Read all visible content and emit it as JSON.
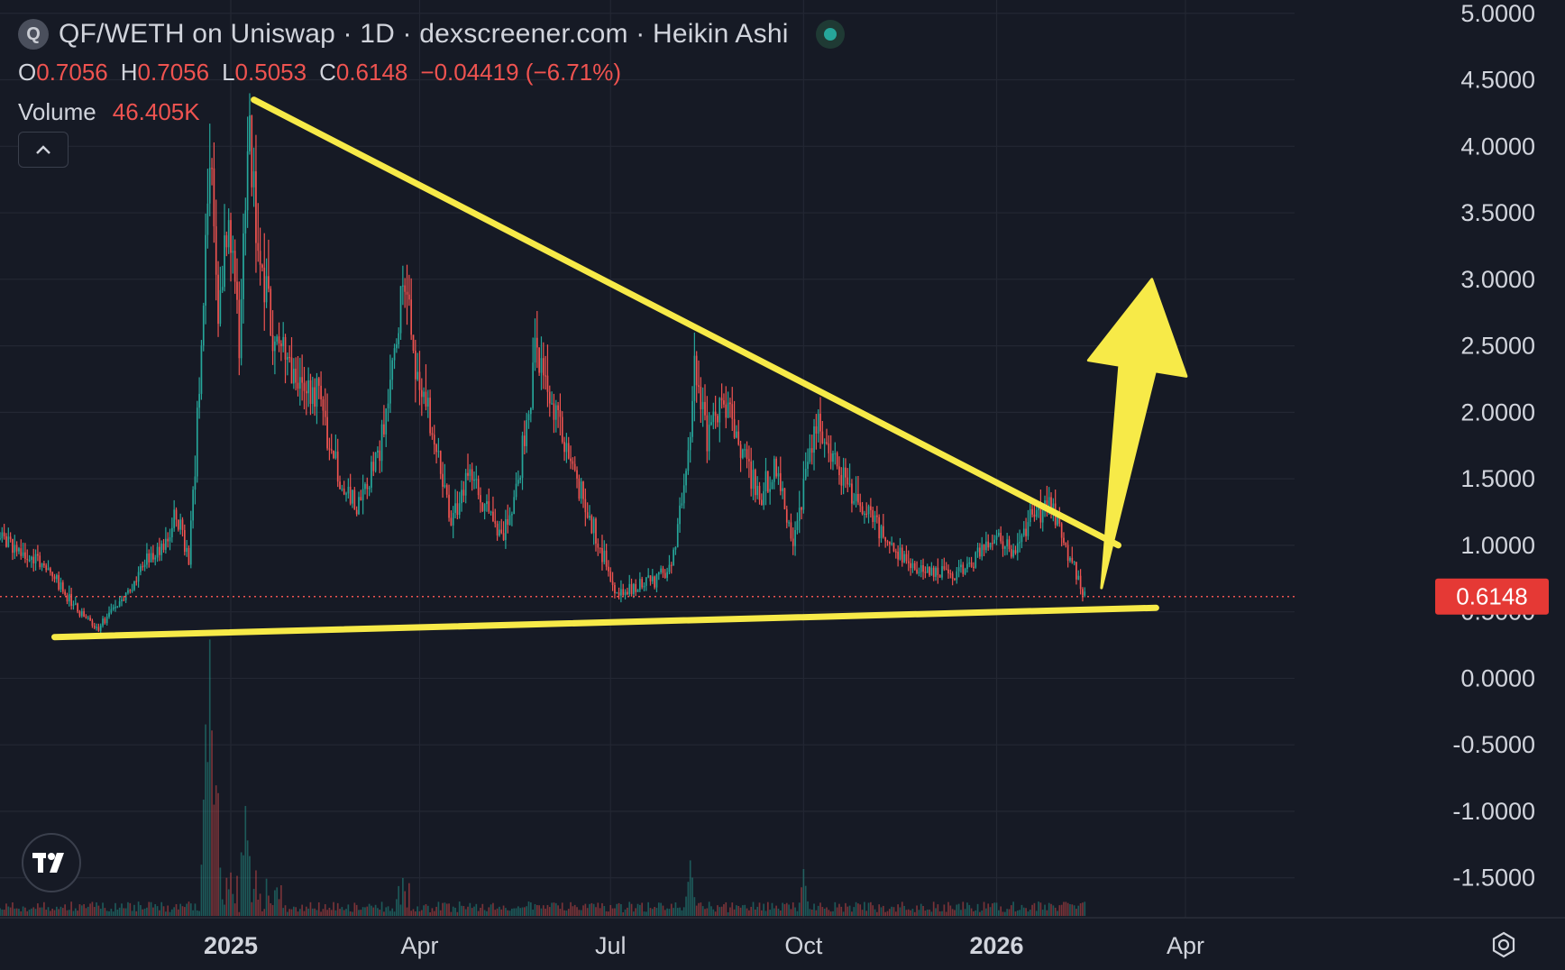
{
  "header": {
    "logo_letter": "Q",
    "title": "QF/WETH on Uniswap · 1D · dexscreener.com · Heikin Ashi",
    "ohlc": {
      "o_label": "O",
      "o_value": "0.7056",
      "h_label": "H",
      "h_value": "0.7056",
      "l_label": "L",
      "l_value": "0.5053",
      "c_label": "C",
      "c_value": "0.6148",
      "change": "−0.04419 (−6.71%)"
    },
    "volume_label": "Volume",
    "volume_value": "46.405K"
  },
  "price_badge": "0.6148",
  "icons": {
    "logo": "q-token-logo-icon",
    "live": "live-status-dot-icon",
    "collapse": "chevron-up-icon",
    "tradingview": "tradingview-logo-icon",
    "settings": "settings-gear-icon"
  },
  "colors": {
    "background": "#161a25",
    "up": "#26a69a",
    "down": "#ef5350",
    "trendline": "#f7ea48",
    "grid": "#232733",
    "price_badge": "#e53935"
  },
  "chart_data": {
    "type": "candlestick",
    "style": "Heikin Ashi",
    "y_ticks": [
      "5.0000",
      "4.5000",
      "4.0000",
      "3.5000",
      "3.0000",
      "2.5000",
      "2.0000",
      "1.5000",
      "1.0000",
      "0.5000",
      "0.0000",
      "-0.5000",
      "-1.0000",
      "-1.5000"
    ],
    "y_tick_values": [
      5.0,
      4.5,
      4.0,
      3.5,
      3.0,
      2.5,
      2.0,
      1.5,
      1.0,
      0.5,
      0.0,
      -0.5,
      -1.0,
      -1.5
    ],
    "ylim": [
      -1.8,
      5.1
    ],
    "x_ticks": [
      {
        "label": "2025",
        "date": "2025-01-01",
        "bold": true
      },
      {
        "label": "Apr",
        "date": "2025-04-01",
        "bold": false
      },
      {
        "label": "Jul",
        "date": "2025-07-01",
        "bold": false
      },
      {
        "label": "Oct",
        "date": "2025-10-01",
        "bold": false
      },
      {
        "label": "2026",
        "date": "2026-01-01",
        "bold": true
      },
      {
        "label": "Apr",
        "date": "2026-04-01",
        "bold": false
      }
    ],
    "xlim": [
      "2024-09-13",
      "2026-05-23"
    ],
    "last_price": 0.6148,
    "last_date": "2026-02-12",
    "trend_points": [
      [
        "2024-09-13",
        1.05
      ],
      [
        "2024-09-25",
        0.95
      ],
      [
        "2024-10-08",
        0.78
      ],
      [
        "2024-10-20",
        0.5
      ],
      [
        "2024-10-30",
        0.38
      ],
      [
        "2024-11-10",
        0.58
      ],
      [
        "2024-11-22",
        0.9
      ],
      [
        "2024-12-01",
        1.0
      ],
      [
        "2024-12-06",
        1.25
      ],
      [
        "2024-12-12",
        0.88
      ],
      [
        "2024-12-18",
        2.4
      ],
      [
        "2024-12-22",
        4.0
      ],
      [
        "2024-12-26",
        2.7
      ],
      [
        "2024-12-31",
        3.6
      ],
      [
        "2025-01-05",
        2.5
      ],
      [
        "2025-01-10",
        4.1
      ],
      [
        "2025-01-15",
        3.1
      ],
      [
        "2025-01-22",
        2.6
      ],
      [
        "2025-02-01",
        2.3
      ],
      [
        "2025-02-12",
        2.1
      ],
      [
        "2025-02-22",
        1.5
      ],
      [
        "2025-03-02",
        1.3
      ],
      [
        "2025-03-10",
        1.6
      ],
      [
        "2025-03-18",
        2.1
      ],
      [
        "2025-03-24",
        3.0
      ],
      [
        "2025-03-30",
        2.4
      ],
      [
        "2025-04-08",
        1.8
      ],
      [
        "2025-04-16",
        1.15
      ],
      [
        "2025-04-24",
        1.5
      ],
      [
        "2025-05-02",
        1.3
      ],
      [
        "2025-05-10",
        1.05
      ],
      [
        "2025-05-18",
        1.45
      ],
      [
        "2025-05-26",
        2.4
      ],
      [
        "2025-06-02",
        2.1
      ],
      [
        "2025-06-10",
        1.7
      ],
      [
        "2025-06-18",
        1.35
      ],
      [
        "2025-06-26",
        1.0
      ],
      [
        "2025-07-04",
        0.62
      ],
      [
        "2025-07-14",
        0.7
      ],
      [
        "2025-07-24",
        0.75
      ],
      [
        "2025-07-31",
        0.9
      ],
      [
        "2025-08-06",
        1.6
      ],
      [
        "2025-08-10",
        2.3
      ],
      [
        "2025-08-16",
        1.8
      ],
      [
        "2025-08-24",
        2.1
      ],
      [
        "2025-09-02",
        1.7
      ],
      [
        "2025-09-10",
        1.35
      ],
      [
        "2025-09-18",
        1.6
      ],
      [
        "2025-09-26",
        1.0
      ],
      [
        "2025-10-02",
        1.5
      ],
      [
        "2025-10-08",
        1.9
      ],
      [
        "2025-10-16",
        1.65
      ],
      [
        "2025-10-24",
        1.35
      ],
      [
        "2025-11-03",
        1.2
      ],
      [
        "2025-11-12",
        1.0
      ],
      [
        "2025-11-22",
        0.85
      ],
      [
        "2025-12-02",
        0.8
      ],
      [
        "2025-12-12",
        0.78
      ],
      [
        "2025-12-22",
        0.9
      ],
      [
        "2026-01-01",
        1.05
      ],
      [
        "2026-01-10",
        0.95
      ],
      [
        "2026-01-18",
        1.25
      ],
      [
        "2026-01-28",
        1.3
      ],
      [
        "2026-02-04",
        0.95
      ],
      [
        "2026-02-12",
        0.6148
      ]
    ],
    "volume_spikes": [
      [
        "2024-12-22",
        1.0
      ],
      [
        "2024-12-20",
        0.65
      ],
      [
        "2024-12-25",
        0.48
      ],
      [
        "2025-01-08",
        0.3
      ],
      [
        "2025-08-08",
        0.2
      ],
      [
        "2025-10-01",
        0.16
      ]
    ],
    "drawings": {
      "resistance_line": {
        "from": [
          "2025-01-12",
          4.35
        ],
        "to": [
          "2026-02-28",
          1.0
        ]
      },
      "support_line": {
        "from": [
          "2024-10-09",
          0.31
        ],
        "to": [
          "2026-03-18",
          0.53
        ]
      },
      "arrow": {
        "tail": [
          "2026-02-20",
          0.68
        ],
        "head": [
          "2026-03-16",
          3.0
        ]
      }
    }
  }
}
